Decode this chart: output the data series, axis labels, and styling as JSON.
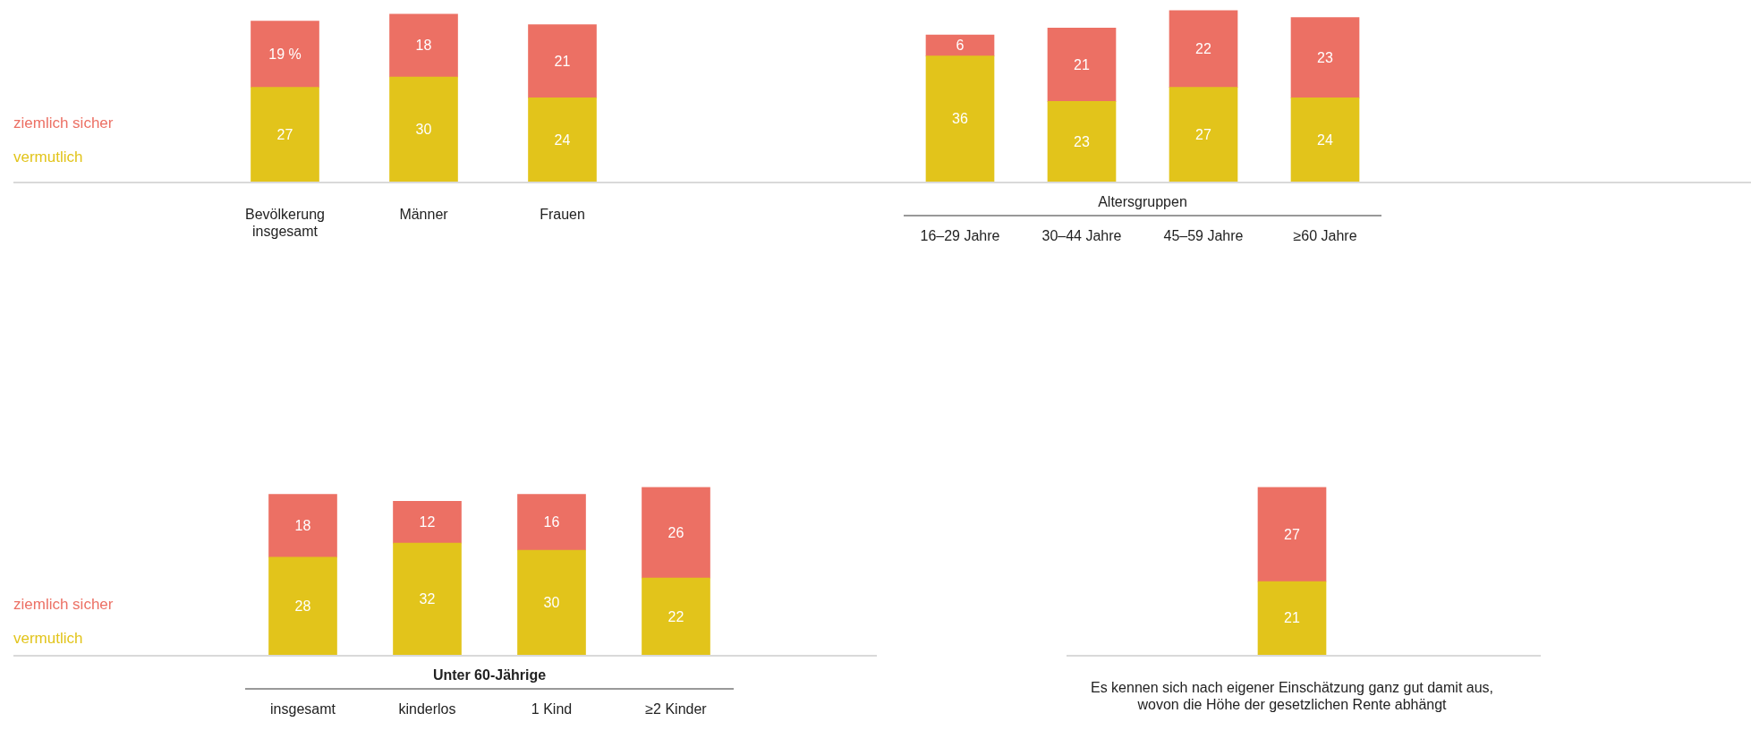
{
  "chart_data": [
    {
      "type": "bar",
      "stacked": true,
      "data_labels": true,
      "legend": "left",
      "categories": [
        "Bevölkerung insgesamt",
        "Männer",
        "Frauen"
      ],
      "series": [
        {
          "name": "vermutlich",
          "color": "#e2c41b",
          "values": [
            27,
            30,
            24
          ]
        },
        {
          "name": "ziemlich sicher",
          "color": "#ec7064",
          "values": [
            19,
            18,
            21
          ],
          "value_labels": [
            "19 %",
            "18",
            "21"
          ]
        }
      ]
    },
    {
      "type": "bar",
      "stacked": true,
      "data_labels": true,
      "xlabel": "Altersgruppen",
      "categories": [
        "16–29 Jahre",
        "30–44 Jahre",
        "45–59 Jahre",
        "≥60 Jahre"
      ],
      "series": [
        {
          "color": "#e2c41b",
          "values": [
            36,
            23,
            27,
            24
          ]
        },
        {
          "color": "#ec7064",
          "values": [
            6,
            21,
            22,
            23
          ]
        }
      ]
    },
    {
      "type": "bar",
      "stacked": true,
      "data_labels": true,
      "legend": "left",
      "xlabel": "Unter 60-Jährige",
      "categories": [
        "insgesamt",
        "kinderlos",
        "1 Kind",
        "≥2 Kinder"
      ],
      "series": [
        {
          "name": "vermutlich",
          "color": "#e2c41b",
          "values": [
            28,
            32,
            30,
            22
          ]
        },
        {
          "name": "ziemlich sicher",
          "color": "#ec7064",
          "values": [
            18,
            12,
            16,
            26
          ]
        }
      ]
    },
    {
      "type": "bar",
      "stacked": true,
      "data_labels": true,
      "categories": [
        "Es kennen sich nach eigener Einschätzung ganz gut damit aus, wovon die Höhe der gesetzlichen Rente abhängt"
      ],
      "series": [
        {
          "color": "#e2c41b",
          "values": [
            21
          ]
        },
        {
          "color": "#ec7064",
          "values": [
            27
          ]
        }
      ]
    }
  ]
}
